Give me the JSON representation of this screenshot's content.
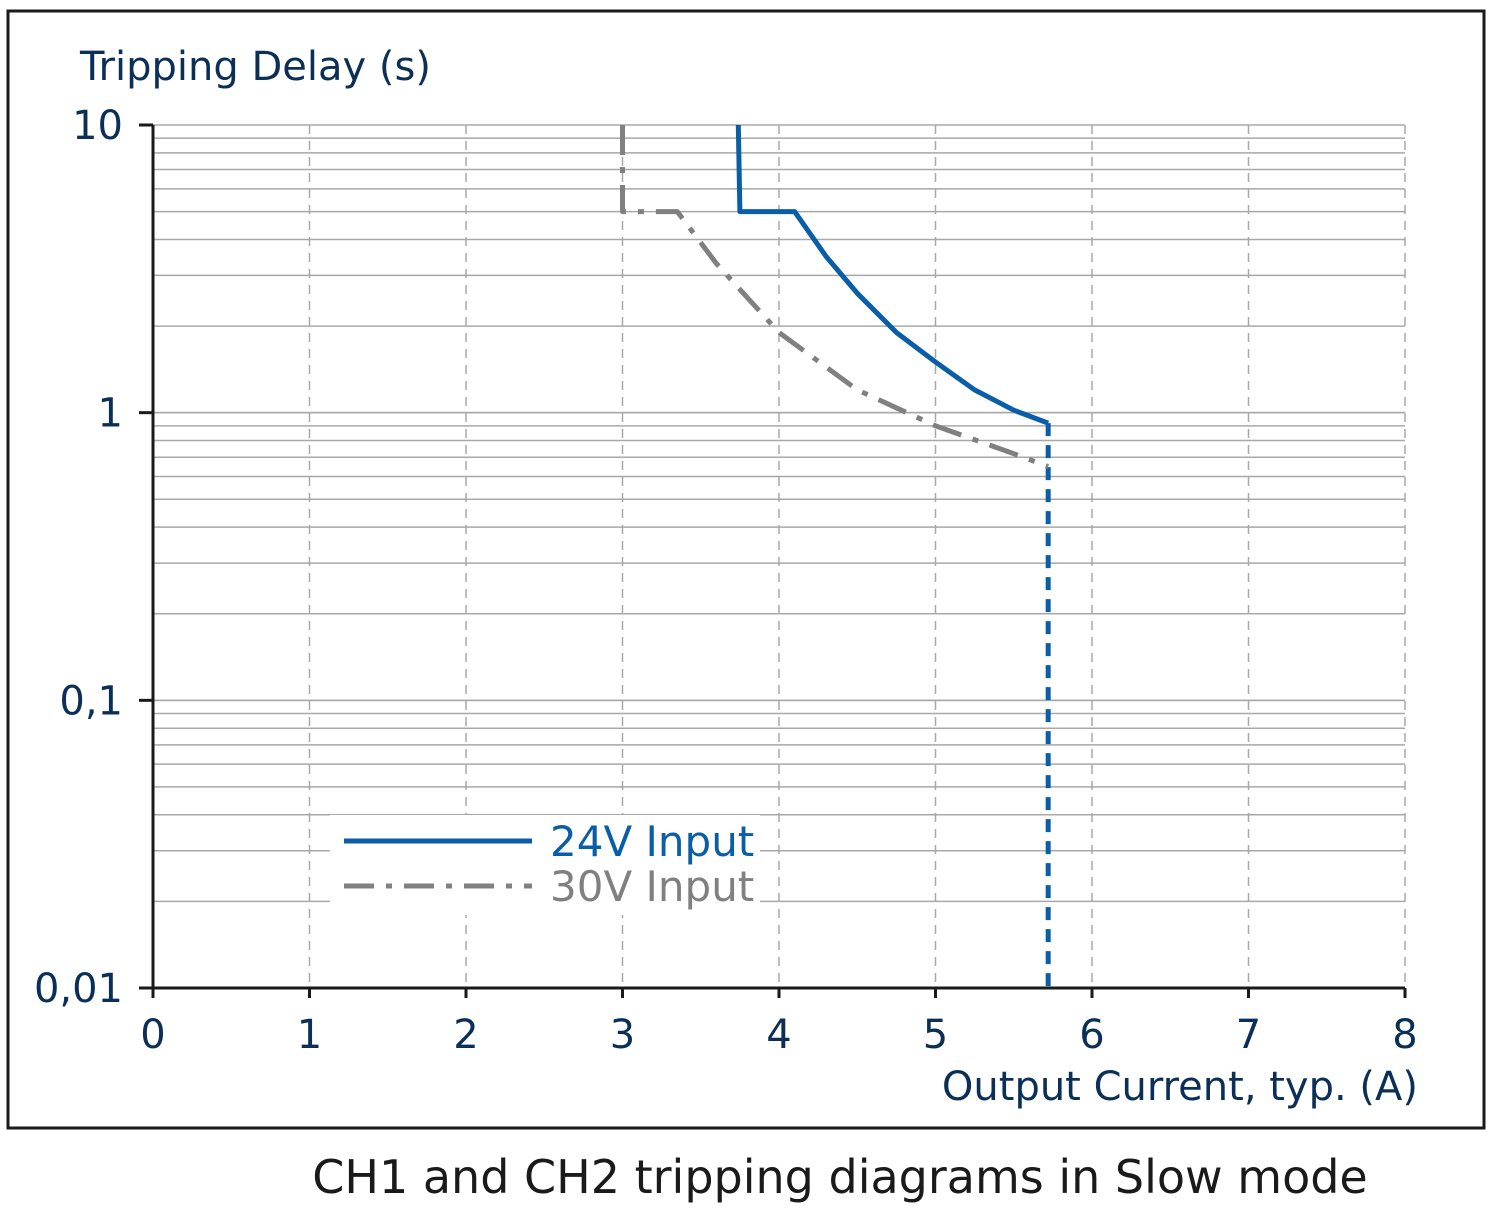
{
  "caption": "CH1 and CH2 tripping diagrams in Slow mode",
  "chart_data": {
    "type": "line",
    "title": "",
    "ylabel": "Tripping Delay (s)",
    "xlabel": "Output Current, typ. (A)",
    "x_ticks": [
      "0",
      "1",
      "2",
      "3",
      "4",
      "5",
      "6",
      "7",
      "8"
    ],
    "y_ticks": [
      {
        "value": 10,
        "label": "10"
      },
      {
        "value": 1,
        "label": "1"
      },
      {
        "value": 0.1,
        "label": "0,1"
      },
      {
        "value": 0.01,
        "label": "0,01"
      }
    ],
    "xlim": [
      0,
      8
    ],
    "ylim": [
      0.01,
      10
    ],
    "y_scale": "log",
    "grid": true,
    "legend_position": "bottom-left",
    "series": [
      {
        "name": "24V Input",
        "color": "#0a5ea8",
        "style": "solid",
        "points": [
          [
            3.74,
            10
          ],
          [
            3.75,
            5
          ],
          [
            4.1,
            5
          ],
          [
            4.3,
            3.5
          ],
          [
            4.5,
            2.6
          ],
          [
            4.75,
            1.9
          ],
          [
            5.0,
            1.5
          ],
          [
            5.25,
            1.2
          ],
          [
            5.5,
            1.02
          ],
          [
            5.72,
            0.92
          ]
        ],
        "cutoff_x": 5.72,
        "cutoff_style": "dashed"
      },
      {
        "name": "30V Input",
        "color": "#808080",
        "style": "dash-dot",
        "points": [
          [
            3.0,
            10
          ],
          [
            3.0,
            5
          ],
          [
            3.35,
            5
          ],
          [
            3.6,
            3.3
          ],
          [
            4.0,
            1.9
          ],
          [
            4.5,
            1.2
          ],
          [
            5.0,
            0.9
          ],
          [
            5.5,
            0.72
          ],
          [
            5.72,
            0.65
          ]
        ]
      }
    ]
  }
}
